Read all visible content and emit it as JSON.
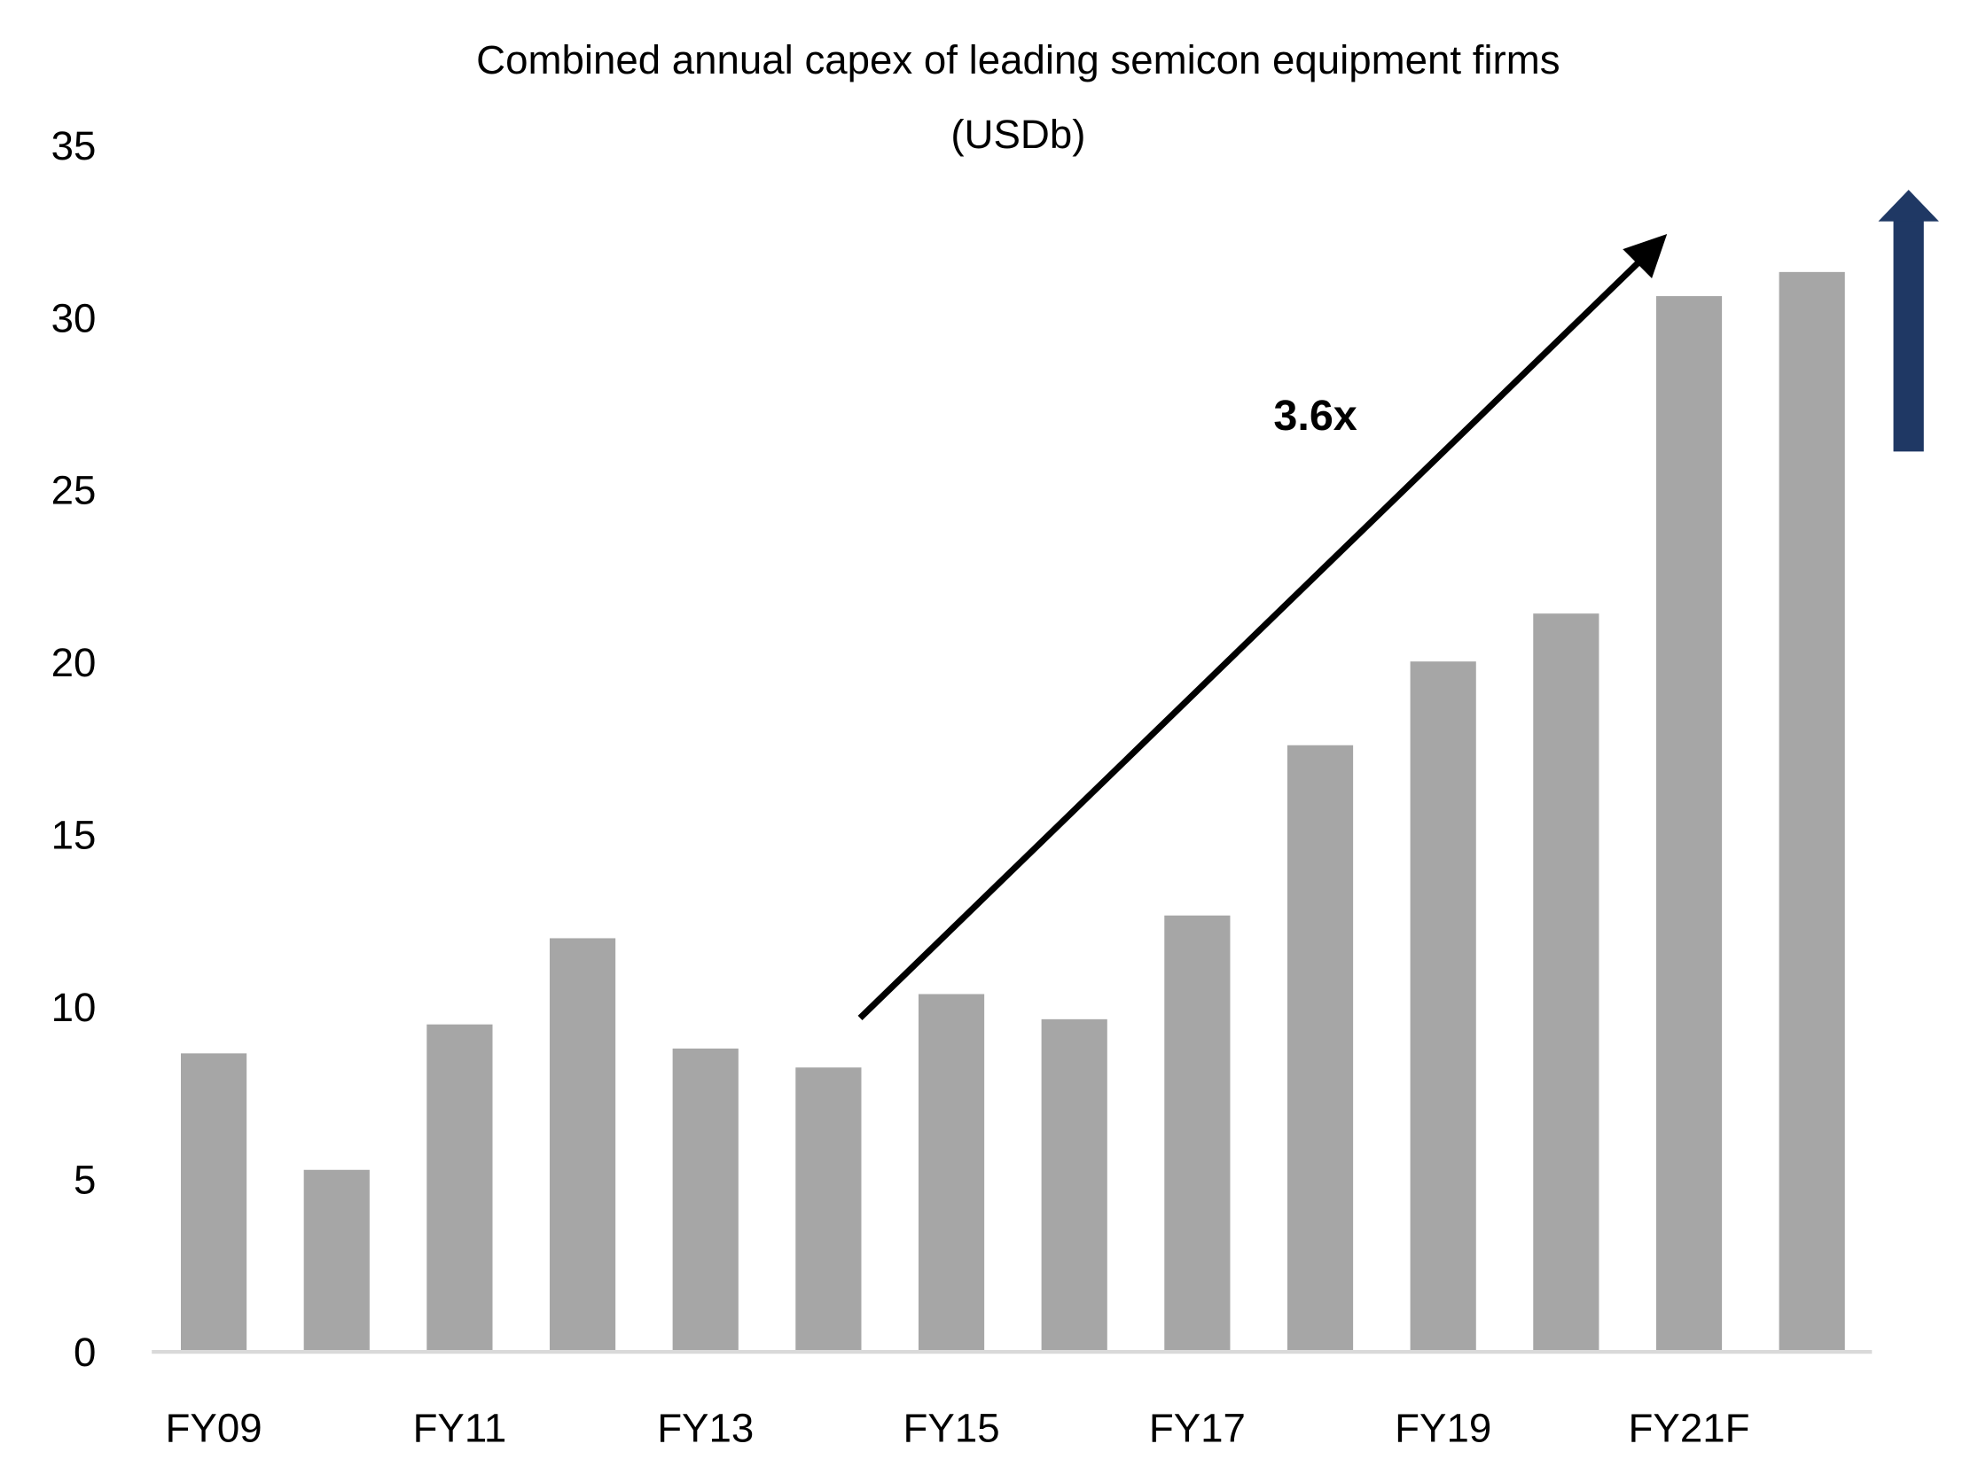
{
  "chart_data": {
    "type": "bar",
    "title_line1": "Combined annual capex of leading semicon equipment firms",
    "title_line2": "(USDb)",
    "xlabel": "",
    "ylabel": "",
    "categories": [
      "FY09",
      "",
      "FY11",
      "",
      "FY13",
      "",
      "FY15",
      "",
      "FY17",
      "",
      "FY19",
      "",
      "FY21F",
      ""
    ],
    "values": [
      8.66,
      5.28,
      9.5,
      12.0,
      8.8,
      8.25,
      10.38,
      9.65,
      12.66,
      17.6,
      20.03,
      21.42,
      30.63,
      31.33
    ],
    "ylim": [
      0,
      35
    ],
    "yticks": [
      0,
      5,
      10,
      15,
      20,
      25,
      30,
      35
    ],
    "grid": false,
    "bar_color": "#a6a6a6",
    "annotation": {
      "text": "3.6x",
      "arrow_color": "#000000"
    },
    "trend_arrow_color": "#1f3864"
  }
}
